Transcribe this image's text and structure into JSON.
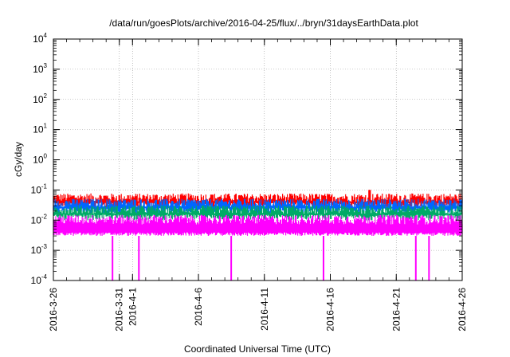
{
  "chart_data": {
    "type": "line",
    "title": "/data/run/goesPlots/archive/2016-04-25/flux/../bryn/31daysEarthData.plot",
    "xlabel": "Coordinated Universal Time (UTC)",
    "ylabel": "cGy/day",
    "yscale": "log",
    "ylim": [
      0.0001,
      10000
    ],
    "y_ticks": [
      {
        "value": 0.0001,
        "base": "10",
        "exp": "-4"
      },
      {
        "value": 0.001,
        "base": "10",
        "exp": "-3"
      },
      {
        "value": 0.01,
        "base": "10",
        "exp": "-2"
      },
      {
        "value": 0.1,
        "base": "10",
        "exp": "-1"
      },
      {
        "value": 1,
        "base": "10",
        "exp": "0"
      },
      {
        "value": 10,
        "base": "10",
        "exp": "1"
      },
      {
        "value": 100,
        "base": "10",
        "exp": "2"
      },
      {
        "value": 1000,
        "base": "10",
        "exp": "3"
      },
      {
        "value": 10000,
        "base": "10",
        "exp": "4"
      }
    ],
    "xlim": [
      "2016-03-26",
      "2016-04-26"
    ],
    "x_ticks": [
      "2016-3-26",
      "2016-3-31",
      "2016-4-1",
      "2016-4-6",
      "2016-4-11",
      "2016-4-16",
      "2016-4-21",
      "2016-4-26"
    ],
    "x_tick_dates": [
      "2016-03-26",
      "2016-03-31",
      "2016-04-01",
      "2016-04-06",
      "2016-04-11",
      "2016-04-16",
      "2016-04-21",
      "2016-04-26"
    ],
    "grid": true,
    "series": [
      {
        "color": "#ff0000",
        "baseline": 0.045,
        "spikes": [
          {
            "x": "2016-04-19",
            "value": 0.1
          },
          {
            "x": "2016-04-07",
            "value": 0.07
          }
        ]
      },
      {
        "color": "#0066ff",
        "baseline": 0.03,
        "spikes": []
      },
      {
        "color": "#00aa66",
        "baseline": 0.018,
        "spikes": []
      },
      {
        "color": "#ff00ff",
        "baseline": 0.006,
        "min": 0.003,
        "dropouts": [
          "2016-03-30",
          "2016-04-01",
          "2016-04-08",
          "2016-04-15",
          "2016-04-22",
          "2016-04-23"
        ]
      }
    ]
  }
}
